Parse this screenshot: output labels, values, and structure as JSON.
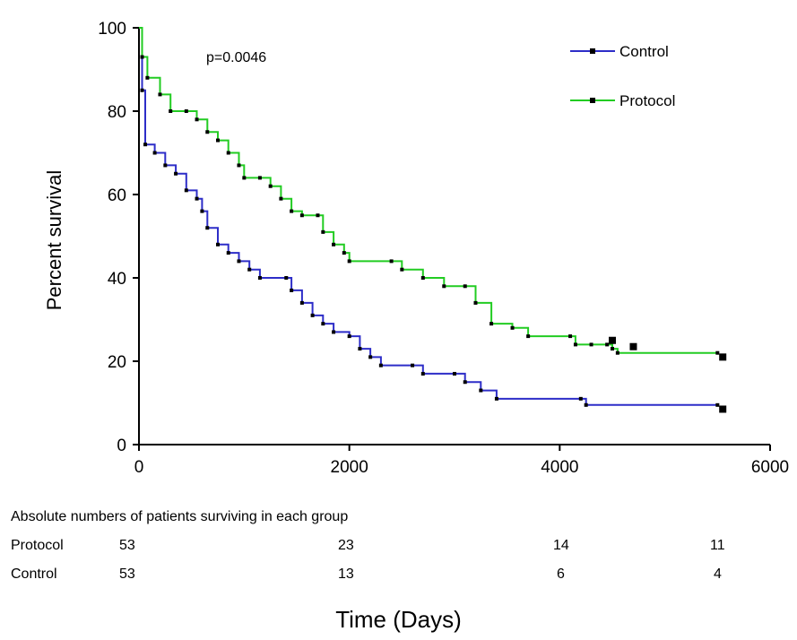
{
  "chart_data": {
    "type": "line",
    "title": "",
    "xlabel": "Time (Days)",
    "ylabel": "Percent survival",
    "xlim": [
      0,
      6000
    ],
    "ylim": [
      0,
      100
    ],
    "x_ticks": [
      "0",
      "2000",
      "4000",
      "6000"
    ],
    "y_ticks": [
      "0",
      "20",
      "40",
      "60",
      "80",
      "100"
    ],
    "annotation": "p=0.0046",
    "legend_position": "top-right",
    "series": [
      {
        "name": "Control",
        "color": "#2d2dc8",
        "points": [
          [
            0,
            100
          ],
          [
            30,
            85
          ],
          [
            60,
            72
          ],
          [
            150,
            70
          ],
          [
            250,
            67
          ],
          [
            350,
            65
          ],
          [
            450,
            61
          ],
          [
            550,
            59
          ],
          [
            600,
            56
          ],
          [
            650,
            52
          ],
          [
            750,
            48
          ],
          [
            850,
            46
          ],
          [
            950,
            44
          ],
          [
            1050,
            42
          ],
          [
            1150,
            40
          ],
          [
            1400,
            40
          ],
          [
            1450,
            37
          ],
          [
            1550,
            34
          ],
          [
            1650,
            31
          ],
          [
            1750,
            29
          ],
          [
            1850,
            27
          ],
          [
            2000,
            26
          ],
          [
            2100,
            23
          ],
          [
            2200,
            21
          ],
          [
            2300,
            19
          ],
          [
            2600,
            19
          ],
          [
            2700,
            17
          ],
          [
            3000,
            17
          ],
          [
            3100,
            15
          ],
          [
            3250,
            13
          ],
          [
            3400,
            11
          ],
          [
            4200,
            11
          ],
          [
            4250,
            9.5
          ],
          [
            5500,
            9.5
          ]
        ],
        "censor": [
          [
            5550,
            8.5
          ]
        ]
      },
      {
        "name": "Protocol",
        "color": "#22cc22",
        "points": [
          [
            0,
            100
          ],
          [
            30,
            93
          ],
          [
            80,
            88
          ],
          [
            200,
            84
          ],
          [
            300,
            80
          ],
          [
            450,
            80
          ],
          [
            550,
            78
          ],
          [
            650,
            75
          ],
          [
            750,
            73
          ],
          [
            850,
            70
          ],
          [
            950,
            67
          ],
          [
            1000,
            64
          ],
          [
            1150,
            64
          ],
          [
            1250,
            62
          ],
          [
            1350,
            59
          ],
          [
            1450,
            56
          ],
          [
            1550,
            55
          ],
          [
            1700,
            55
          ],
          [
            1750,
            51
          ],
          [
            1850,
            48
          ],
          [
            1950,
            46
          ],
          [
            2000,
            44
          ],
          [
            2400,
            44
          ],
          [
            2500,
            42
          ],
          [
            2700,
            40
          ],
          [
            2900,
            38
          ],
          [
            3100,
            38
          ],
          [
            3200,
            34
          ],
          [
            3350,
            29
          ],
          [
            3550,
            28
          ],
          [
            3700,
            26
          ],
          [
            4100,
            26
          ],
          [
            4150,
            24
          ],
          [
            4300,
            24
          ],
          [
            4450,
            24
          ],
          [
            4500,
            23
          ],
          [
            4550,
            22
          ],
          [
            5500,
            22
          ]
        ],
        "censor": [
          [
            4500,
            25
          ],
          [
            4700,
            23.5
          ],
          [
            5550,
            21
          ]
        ]
      }
    ]
  },
  "table": {
    "title": "Absolute numbers of patients surviving in each group",
    "rows": [
      {
        "label": "Protocol",
        "values": [
          "53",
          "23",
          "14",
          "11"
        ]
      },
      {
        "label": "Control",
        "values": [
          "53",
          "13",
          "6",
          "4"
        ]
      }
    ]
  }
}
